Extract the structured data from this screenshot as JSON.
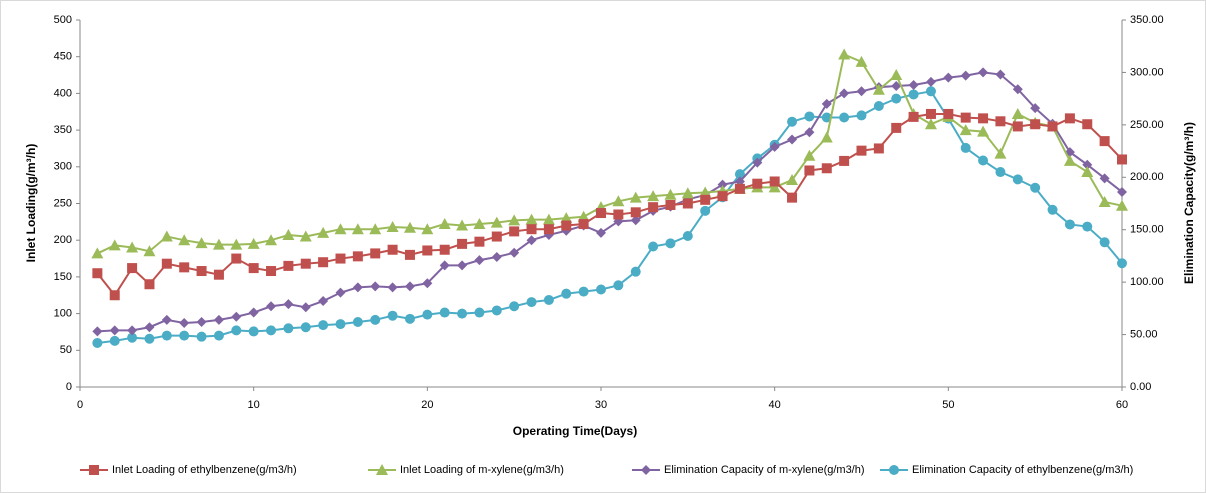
{
  "chart_data": {
    "type": "line",
    "x_label": "Operating Time(Days)",
    "y_label": "Inlet Loading(g/m³/h)",
    "y2_label": "Elimination Capacity(g/m³/h)",
    "x": [
      1,
      2,
      3,
      4,
      5,
      6,
      7,
      8,
      9,
      10,
      11,
      12,
      13,
      14,
      15,
      16,
      17,
      18,
      19,
      20,
      21,
      22,
      23,
      24,
      25,
      26,
      27,
      28,
      29,
      30,
      31,
      32,
      33,
      34,
      35,
      36,
      37,
      38,
      39,
      40,
      41,
      42,
      43,
      44,
      45,
      46,
      47,
      48,
      49,
      50,
      51,
      52,
      53,
      54,
      55,
      56,
      57,
      58,
      59,
      60
    ],
    "xlim": [
      0,
      60
    ],
    "xticks": [
      0,
      10,
      20,
      30,
      40,
      50,
      60
    ],
    "ylim": [
      0,
      500
    ],
    "yticks": [
      0,
      50,
      100,
      150,
      200,
      250,
      300,
      350,
      400,
      450,
      500
    ],
    "y2lim": [
      0,
      350
    ],
    "y2ticks": [
      {
        "value": 0,
        "label": "0.00"
      },
      {
        "value": 50,
        "label": "50.00"
      },
      {
        "value": 100,
        "label": "100.00"
      },
      {
        "value": 150,
        "label": "150.00"
      },
      {
        "value": 200,
        "label": "200.00"
      },
      {
        "value": 250,
        "label": "250.00"
      },
      {
        "value": 300,
        "label": "300.00"
      },
      {
        "value": 350,
        "label": "350.00"
      }
    ],
    "grid": false,
    "legend": "bottom",
    "series": [
      {
        "name": "Inlet Loading of ethylbenzene(g/m3/h)",
        "color": "#c0504d",
        "marker": "square",
        "values": [
          155,
          125,
          162,
          140,
          168,
          163,
          158,
          153,
          175,
          162,
          158,
          165,
          168,
          170,
          175,
          178,
          182,
          187,
          180,
          186,
          187,
          195,
          198,
          205,
          212,
          215,
          215,
          220,
          222,
          237,
          235,
          238,
          245,
          248,
          250,
          255,
          260,
          270,
          277,
          280,
          258,
          295,
          298,
          308,
          322,
          325,
          353,
          368,
          372,
          372,
          367,
          366,
          362,
          355,
          358,
          355,
          366,
          358,
          335,
          310
        ]
      },
      {
        "name": "Inlet Loading of m-xylene(g/m3/h)",
        "color": "#9bbb59",
        "marker": "triangle",
        "values": [
          182,
          193,
          190,
          185,
          205,
          200,
          196,
          194,
          194,
          195,
          200,
          207,
          205,
          210,
          215,
          215,
          215,
          218,
          217,
          215,
          222,
          220,
          222,
          224,
          227,
          228,
          228,
          230,
          232,
          245,
          253,
          258,
          260,
          262,
          264,
          265,
          267,
          270,
          272,
          272,
          282,
          315,
          340,
          453,
          443,
          405,
          425,
          372,
          358,
          368,
          350,
          348,
          318,
          372,
          360,
          355,
          308,
          293,
          252,
          247
        ]
      },
      {
        "name": "Elimination Capacity of m-xylene(g/m3/h)",
        "color": "#8064a2",
        "marker": "diamond",
        "axis": "y2",
        "values": [
          53,
          54,
          54,
          57,
          64,
          61,
          62,
          64,
          67,
          71,
          77,
          79,
          76,
          82,
          90,
          95,
          96,
          95,
          96,
          99,
          116,
          116,
          121,
          124,
          128,
          140,
          145,
          149,
          154,
          147,
          158,
          159,
          168,
          172,
          179,
          183,
          193,
          196,
          214,
          229,
          236,
          243,
          270,
          280,
          282,
          286,
          287,
          288,
          291,
          295,
          297,
          300,
          298,
          284,
          266,
          251,
          224,
          212,
          199,
          186
        ]
      },
      {
        "name": "Elimination Capacity of ethylbenzene(g/m3/h)",
        "color": "#4bacc6",
        "marker": "circle",
        "axis": "y2",
        "values": [
          42,
          44,
          47,
          46,
          49,
          49,
          48,
          49,
          54,
          53,
          54,
          56,
          57,
          59,
          60,
          62,
          64,
          68,
          65,
          69,
          71,
          70,
          71,
          73,
          77,
          81,
          83,
          89,
          91,
          93,
          97,
          110,
          134,
          137,
          144,
          168,
          181,
          203,
          218,
          231,
          253,
          258,
          257,
          257,
          259,
          268,
          275,
          279,
          282,
          256,
          228,
          216,
          205,
          198,
          190,
          169,
          155,
          153,
          138,
          118
        ]
      }
    ]
  }
}
